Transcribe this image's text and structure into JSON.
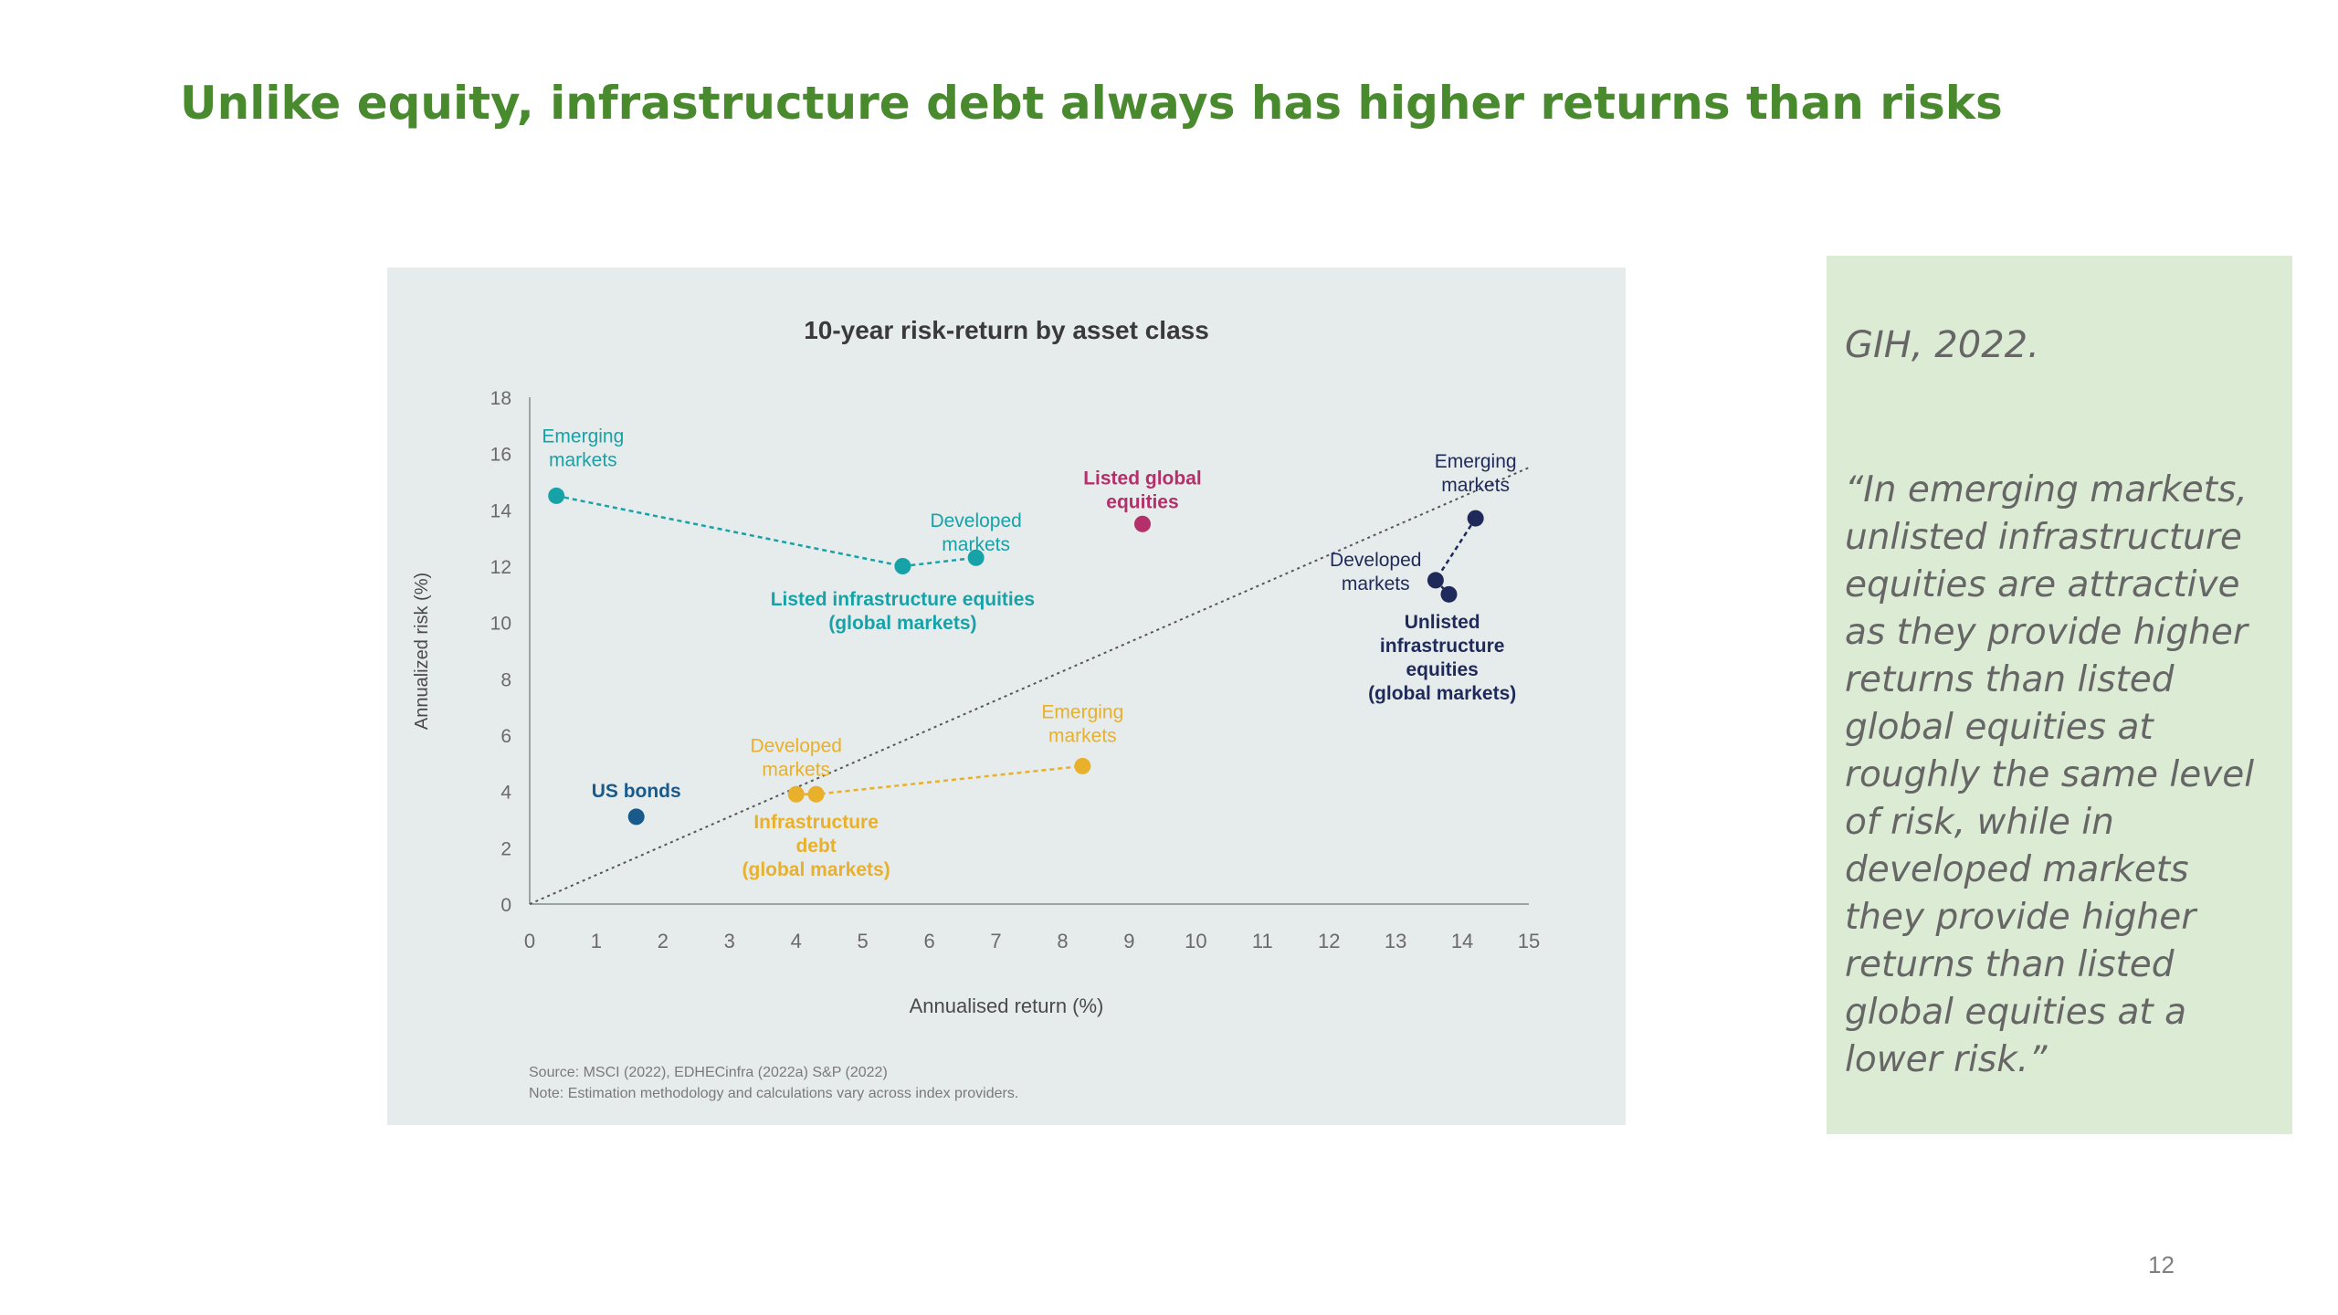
{
  "slide": {
    "title": "Unlike equity, infrastructure debt always has higher returns than risks",
    "page_number": "12"
  },
  "quote_panel": {
    "citation": "GIH, 2022.",
    "text": "“In emerging markets, unlisted infrastructure equities are attractive as they provide higher returns than listed global equities at roughly the same level of risk, while in developed markets they provide higher returns than listed global equities at a lower risk.”"
  },
  "colors": {
    "title_green": "#4a8a2f",
    "teal": "#17a2a8",
    "navy": "#1f2a5a",
    "magenta": "#b3306a",
    "yellow": "#e8b02b",
    "us_bonds_blue": "#1a5a8a"
  },
  "chart_data": {
    "type": "scatter",
    "title": "10-year risk-return by asset class",
    "xlabel": "Annualised return (%)",
    "ylabel": "Annualized risk (%)",
    "xlim": [
      0,
      15
    ],
    "ylim": [
      0,
      18
    ],
    "x_ticks": [
      0,
      1,
      2,
      3,
      4,
      5,
      6,
      7,
      8,
      9,
      10,
      11,
      12,
      13,
      14,
      15
    ],
    "y_ticks": [
      0,
      2,
      4,
      6,
      8,
      10,
      12,
      14,
      16,
      18
    ],
    "grid": false,
    "reference_line": {
      "style": "dotted",
      "from": [
        0,
        0
      ],
      "to": [
        15,
        15.5
      ]
    },
    "groups": [
      {
        "id": "listed-infra",
        "label_lines": [
          "Listed infrastructure equities",
          "(global markets)"
        ],
        "label_at": [
          5.6,
          10.6
        ],
        "color": "#17a2a8",
        "points": [
          {
            "x": 0.4,
            "y": 14.5,
            "label_lines": [
              "Emerging",
              "markets"
            ],
            "label_at": [
              0.8,
              16.4
            ]
          },
          {
            "x": 5.6,
            "y": 12.0
          },
          {
            "x": 6.7,
            "y": 12.3,
            "label_lines": [
              "Developed",
              "markets"
            ],
            "label_at": [
              6.7,
              13.4
            ]
          }
        ]
      },
      {
        "id": "unlisted-infra",
        "label_lines": [
          "Unlisted",
          "infrastructure",
          "equities",
          "(global markets)"
        ],
        "label_at": [
          13.7,
          9.8
        ],
        "color": "#1f2a5a",
        "points": [
          {
            "x": 14.2,
            "y": 13.7,
            "label_lines": [
              "Emerging",
              "markets"
            ],
            "label_at": [
              14.2,
              15.5
            ]
          },
          {
            "x": 13.6,
            "y": 11.5,
            "label_lines": [
              "Developed",
              "markets"
            ],
            "label_at": [
              12.7,
              12.0
            ]
          },
          {
            "x": 13.8,
            "y": 11.0
          }
        ]
      },
      {
        "id": "infra-debt",
        "label_lines": [
          "Infrastructure",
          "debt",
          "(global markets)"
        ],
        "label_at": [
          4.3,
          2.7
        ],
        "color": "#e8b02b",
        "points": [
          {
            "x": 4.0,
            "y": 3.9,
            "label_lines": [
              "Developed",
              "markets"
            ],
            "label_at": [
              4.0,
              5.4
            ]
          },
          {
            "x": 4.3,
            "y": 3.9
          },
          {
            "x": 8.3,
            "y": 4.9,
            "label_lines": [
              "Emerging",
              "markets"
            ],
            "label_at": [
              8.3,
              6.6
            ]
          }
        ]
      },
      {
        "id": "listed-global",
        "label_lines": [
          "Listed global",
          "equities"
        ],
        "label_at": [
          9.2,
          14.9
        ],
        "color": "#b3306a",
        "points": [
          {
            "x": 9.2,
            "y": 13.5
          }
        ]
      },
      {
        "id": "us-bonds",
        "label_lines": [
          "US bonds"
        ],
        "label_at": [
          1.6,
          3.8
        ],
        "color": "#1a5a8a",
        "points": [
          {
            "x": 1.6,
            "y": 3.1
          }
        ]
      }
    ],
    "source_lines": [
      "Source: MSCI (2022), EDHECinfra (2022a) S&P (2022)",
      "Note: Estimation methodology and calculations vary across index providers."
    ]
  }
}
